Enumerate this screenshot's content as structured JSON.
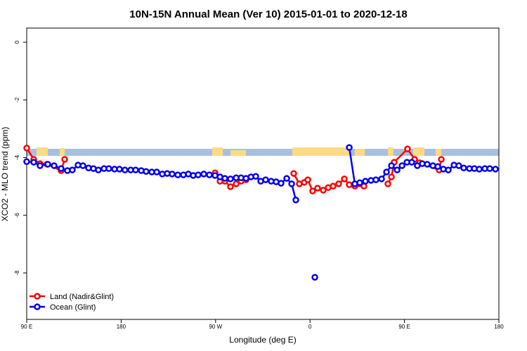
{
  "chart_data": {
    "type": "line",
    "title": "10N-15N Annual Mean (Ver 10)   2015-01-01 to 2020-12-18",
    "x_label": "Longitude (deg E)",
    "y_label": "XCO2 - MLO trend (ppm)",
    "xlim": [
      90,
      540
    ],
    "ylim": [
      -9.61,
      0.49
    ],
    "xticks": [
      {
        "value": 90,
        "label": "90 E"
      },
      180,
      {
        "value": 270,
        "label": "90 W"
      },
      {
        "value": 360,
        "label": "0"
      },
      {
        "value": 450,
        "label": "90 E"
      },
      {
        "value": 540,
        "label": "180"
      }
    ],
    "yticks": [
      0,
      -2,
      -4,
      -6,
      -8
    ],
    "legend": "bottomleft",
    "series": [
      {
        "name": "Land (Nadir&Glint)",
        "color": "#ff0000",
        "x": [
          90,
          96.7,
          102.7,
          109.4,
          122.8,
          126.2,
          null,
          269.5,
          274.2,
          278.9,
          284.2,
          289.6,
          294.3,
          299,
          null,
          344.5,
          349.8,
          354.5,
          357.9,
          362.5,
          367.2,
          372.6,
          377.3,
          382,
          387.3,
          392.7,
          397.4,
          402.7,
          411.4,
          null,
          434.2,
          437.6,
          440.2,
          452.9,
          459.7,
          464.3,
          483.1,
          485.1
        ],
        "values": [
          -3.67,
          -4.06,
          -4.21,
          -4.23,
          -4.45,
          -4.06,
          null,
          -4.53,
          -4.82,
          -4.82,
          -5.01,
          -4.91,
          -4.82,
          -4.77,
          null,
          -4.55,
          -4.91,
          -4.86,
          -4.77,
          -5.16,
          -5.06,
          -5.13,
          -5.04,
          -4.99,
          -4.91,
          -4.74,
          -4.94,
          -4.99,
          -4.99,
          null,
          -4.91,
          -4.67,
          -4.16,
          -3.7,
          -4.06,
          -4.18,
          -4.43,
          -4.06
        ]
      },
      {
        "name": "Ocean (Glint)",
        "color": "#0000ee",
        "x": [
          90,
          96.7,
          102.7,
          110.1,
          116.1,
          122.8,
          128.8,
          133.5,
          138.9,
          143.6,
          148.9,
          153.6,
          158.3,
          163.7,
          168.3,
          173.7,
          178.4,
          183.6,
          189.1,
          193.8,
          199.2,
          203.8,
          209.2,
          213.9,
          219.2,
          223.9,
          228.6,
          234,
          239.3,
          244,
          248.7,
          253.4,
          258.8,
          264.1,
          269.5,
          274.2,
          278.9,
          284.2,
          289.6,
          294.3,
          299,
          303.7,
          308.3,
          313,
          317.7,
          323,
          327.7,
          332.4,
          337.8,
          342.5,
          346.5,
          null,
          364.6,
          null,
          397.4,
          402.7,
          407.4,
          412.8,
          418.1,
          422.8,
          428.2,
          432.9,
          437.6,
          443,
          447.7,
          452.4,
          457,
          462.3,
          467,
          471.7,
          477.1,
          481.8,
          487.1,
          491.8,
          497.2,
          501.8,
          506.5,
          511.9,
          516.6,
          521.3,
          526.6,
          531.3,
          536.7
        ],
        "values": [
          -4.14,
          -4.16,
          -4.28,
          -4.23,
          -4.28,
          -4.38,
          -4.45,
          -4.43,
          -4.26,
          -4.28,
          -4.36,
          -4.38,
          -4.43,
          -4.38,
          -4.38,
          -4.4,
          -4.4,
          -4.43,
          -4.43,
          -4.43,
          -4.45,
          -4.48,
          -4.5,
          -4.5,
          -4.57,
          -4.55,
          -4.57,
          -4.6,
          -4.6,
          -4.57,
          -4.62,
          -4.6,
          -4.57,
          -4.6,
          -4.62,
          -4.67,
          -4.72,
          -4.74,
          -4.7,
          -4.7,
          -4.72,
          -4.67,
          -4.65,
          -4.82,
          -4.77,
          -4.82,
          -4.84,
          -4.89,
          -4.72,
          -4.91,
          -5.47,
          null,
          -8.15,
          null,
          -3.65,
          -4.91,
          -4.87,
          -4.82,
          -4.79,
          -4.77,
          -4.74,
          -4.5,
          -4.28,
          -4.43,
          -4.28,
          -4.16,
          -4.16,
          -4.28,
          -4.21,
          -4.23,
          -4.28,
          -4.31,
          -4.4,
          -4.43,
          -4.26,
          -4.28,
          -4.36,
          -4.38,
          -4.38,
          -4.4,
          -4.38,
          -4.38,
          -4.4
        ]
      }
    ]
  }
}
